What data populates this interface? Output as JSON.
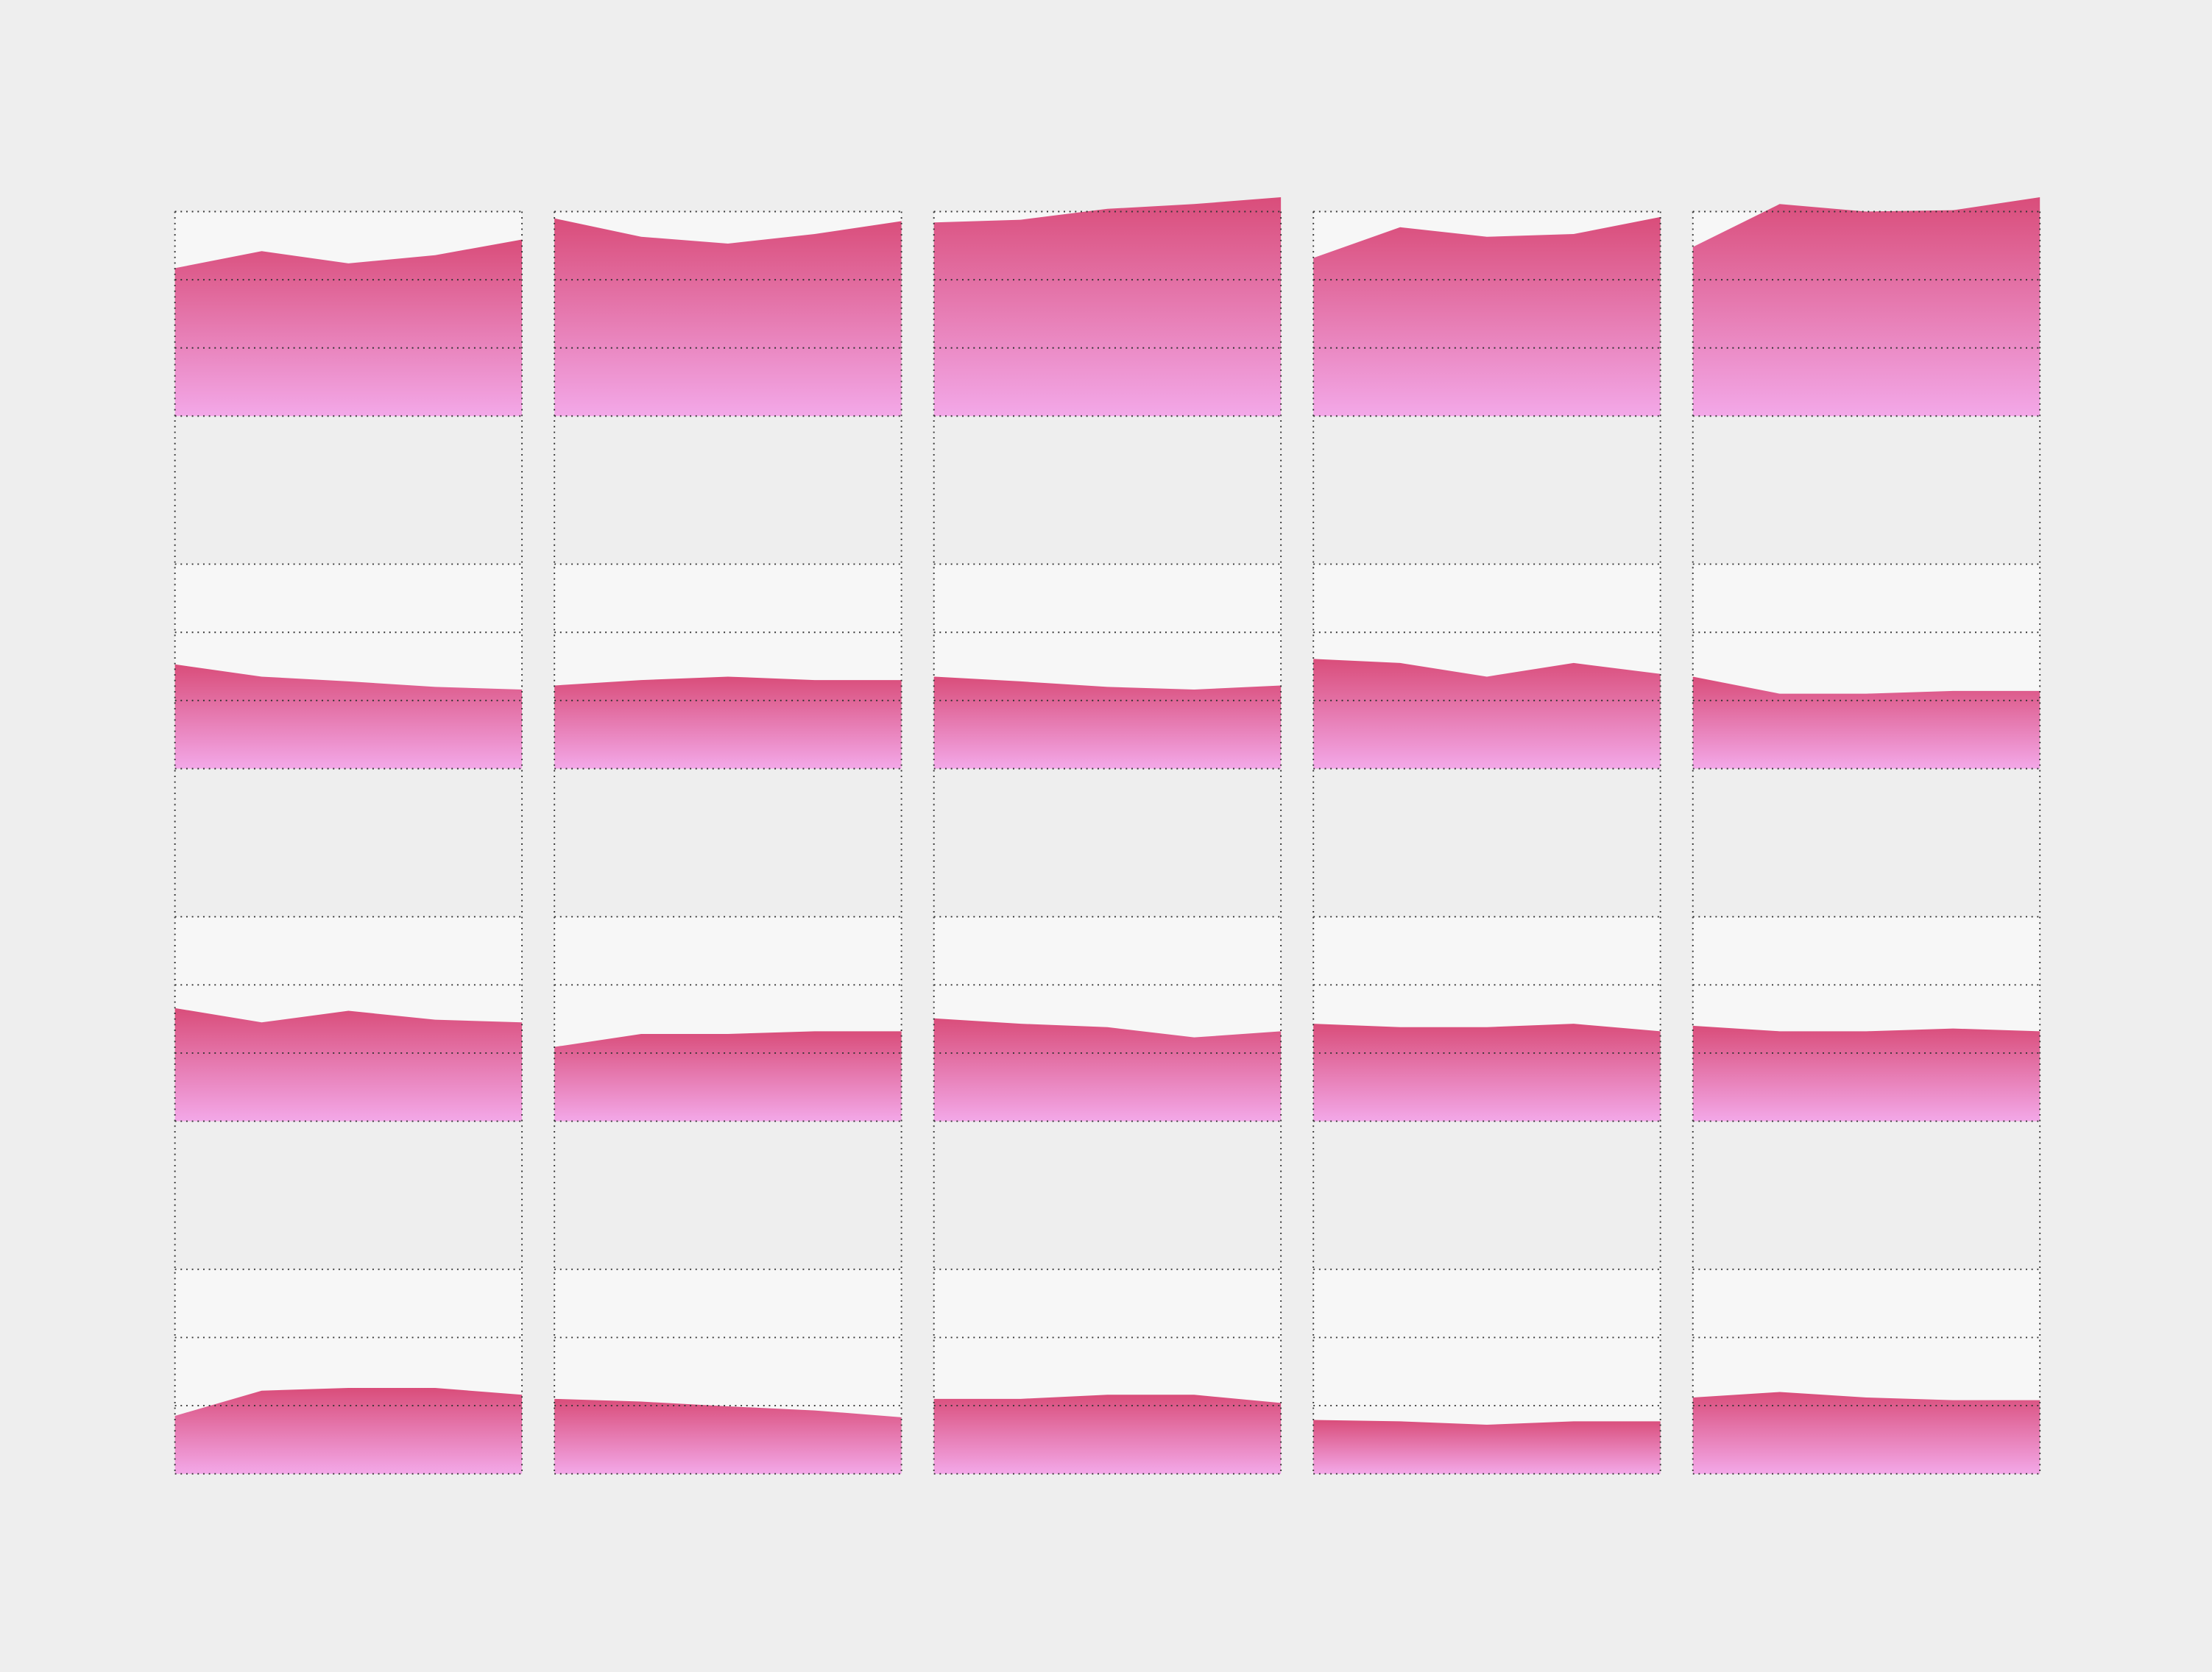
{
  "chart_data": {
    "type": "area",
    "ylim": [
      0,
      3
    ],
    "yticks": [
      0,
      1,
      2,
      3
    ],
    "grid": true,
    "color": "#d94d7a",
    "gradient_to": "#f3a8e8",
    "columns": 5,
    "panels": [
      {
        "values": [
          2.17,
          2.42,
          2.24,
          2.36,
          2.59
        ]
      },
      {
        "values": [
          2.9,
          2.63,
          2.53,
          2.67,
          2.86
        ]
      },
      {
        "values": [
          2.84,
          2.88,
          3.04,
          3.11,
          3.21
        ]
      },
      {
        "values": [
          2.32,
          2.77,
          2.63,
          2.67,
          2.92
        ]
      },
      {
        "values": [
          2.48,
          3.11,
          3.0,
          3.02,
          3.21
        ]
      },
      {
        "values": [
          1.53,
          1.35,
          1.28,
          1.2,
          1.16
        ]
      },
      {
        "values": [
          1.22,
          1.3,
          1.35,
          1.3,
          1.3
        ]
      },
      {
        "values": [
          1.35,
          1.28,
          1.2,
          1.16,
          1.22
        ]
      },
      {
        "values": [
          1.61,
          1.55,
          1.35,
          1.55,
          1.39
        ]
      },
      {
        "values": [
          1.35,
          1.1,
          1.1,
          1.14,
          1.14
        ]
      },
      {
        "values": [
          1.66,
          1.45,
          1.62,
          1.49,
          1.45
        ]
      },
      {
        "values": [
          1.09,
          1.28,
          1.28,
          1.32,
          1.32
        ]
      },
      {
        "values": [
          1.51,
          1.43,
          1.38,
          1.23,
          1.32
        ]
      },
      {
        "values": [
          1.43,
          1.38,
          1.38,
          1.43,
          1.32
        ]
      },
      {
        "values": [
          1.4,
          1.32,
          1.32,
          1.36,
          1.32
        ]
      },
      {
        "values": [
          0.85,
          1.22,
          1.26,
          1.26,
          1.16
        ]
      },
      {
        "values": [
          1.1,
          1.06,
          0.99,
          0.93,
          0.83
        ]
      },
      {
        "values": [
          1.1,
          1.1,
          1.16,
          1.16,
          1.04
        ]
      },
      {
        "values": [
          0.79,
          0.77,
          0.72,
          0.77,
          0.77
        ]
      },
      {
        "values": [
          1.12,
          1.2,
          1.12,
          1.08,
          1.08
        ]
      }
    ]
  }
}
